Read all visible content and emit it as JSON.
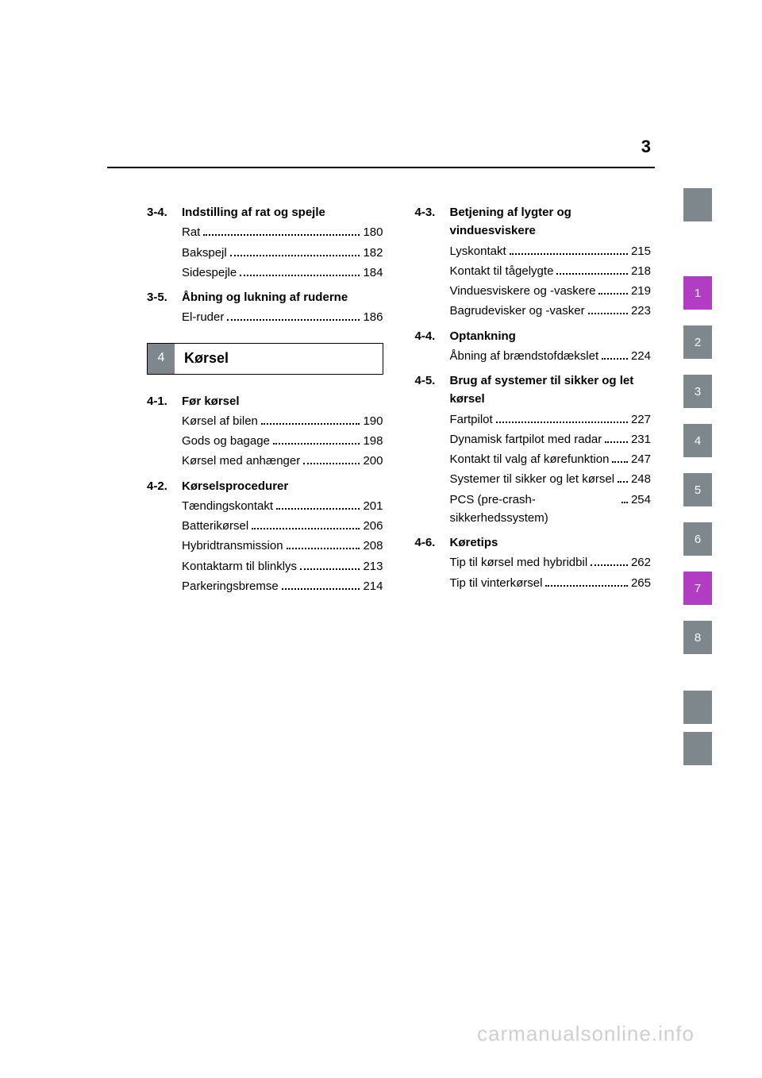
{
  "page_number": "3",
  "chapter": {
    "number": "4",
    "title": "Kørsel"
  },
  "tabs": [
    {
      "label": "1",
      "color": "#b33cc4"
    },
    {
      "label": "2",
      "color": "#7e888c"
    },
    {
      "label": "3",
      "color": "#7e888c"
    },
    {
      "label": "4",
      "color": "#7e888c"
    },
    {
      "label": "5",
      "color": "#7e888c"
    },
    {
      "label": "6",
      "color": "#7e888c"
    },
    {
      "label": "7",
      "color": "#b33cc4"
    },
    {
      "label": "8",
      "color": "#7e888c"
    }
  ],
  "left": [
    {
      "num": "3-4.",
      "title": "Indstilling af rat og spejle",
      "items": [
        {
          "text": "Rat",
          "page": "180"
        },
        {
          "text": "Bakspejl",
          "page": "182"
        },
        {
          "text": "Sidespejle",
          "page": "184"
        }
      ]
    },
    {
      "num": "3-5.",
      "title": "Åbning og lukning af ruderne",
      "items": [
        {
          "text": "El-ruder",
          "page": "186"
        }
      ]
    },
    {
      "num": "4-1.",
      "title": "Før kørsel",
      "items": [
        {
          "text": "Kørsel af bilen",
          "page": "190"
        },
        {
          "text": "Gods og bagage",
          "page": "198"
        },
        {
          "text": "Kørsel med anhænger",
          "page": "200"
        }
      ]
    },
    {
      "num": "4-2.",
      "title": "Kørselsprocedurer",
      "items": [
        {
          "text": "Tændingskontakt",
          "page": "201"
        },
        {
          "text": "Batterikørsel",
          "page": "206"
        },
        {
          "text": "Hybridtransmission",
          "page": "208"
        },
        {
          "text": "Kontaktarm til blinklys",
          "page": "213"
        },
        {
          "text": "Parkeringsbremse",
          "page": "214"
        }
      ]
    }
  ],
  "right": [
    {
      "num": "4-3.",
      "title": "Betjening af lygter og vinduesviskere",
      "items": [
        {
          "text": "Lyskontakt",
          "page": "215"
        },
        {
          "text": "Kontakt til tågelygte",
          "page": "218"
        },
        {
          "text": "Vinduesviskere og -vaskere",
          "page": "219"
        },
        {
          "text": "Bagrudevisker og -vasker",
          "page": "223"
        }
      ]
    },
    {
      "num": "4-4.",
      "title": "Optankning",
      "items": [
        {
          "text": "Åbning af brændstofdækslet",
          "page": "224"
        }
      ]
    },
    {
      "num": "4-5.",
      "title": "Brug af systemer til sikker og let kørsel",
      "items": [
        {
          "text": "Fartpilot",
          "page": "227"
        },
        {
          "text": "Dynamisk fartpilot med radar",
          "page": "231"
        },
        {
          "text": "Kontakt til valg af kørefunktion",
          "page": "247"
        },
        {
          "text": "Systemer til sikker og let kørsel",
          "page": "248"
        },
        {
          "text": "PCS (pre-crash-sikkerhedssystem)",
          "page": "254"
        }
      ]
    },
    {
      "num": "4-6.",
      "title": "Køretips",
      "items": [
        {
          "text": "Tip til kørsel med hybridbil",
          "page": "262"
        },
        {
          "text": "Tip til vinterkørsel",
          "page": "265"
        }
      ]
    }
  ],
  "watermark": "carmanualsonline.info"
}
